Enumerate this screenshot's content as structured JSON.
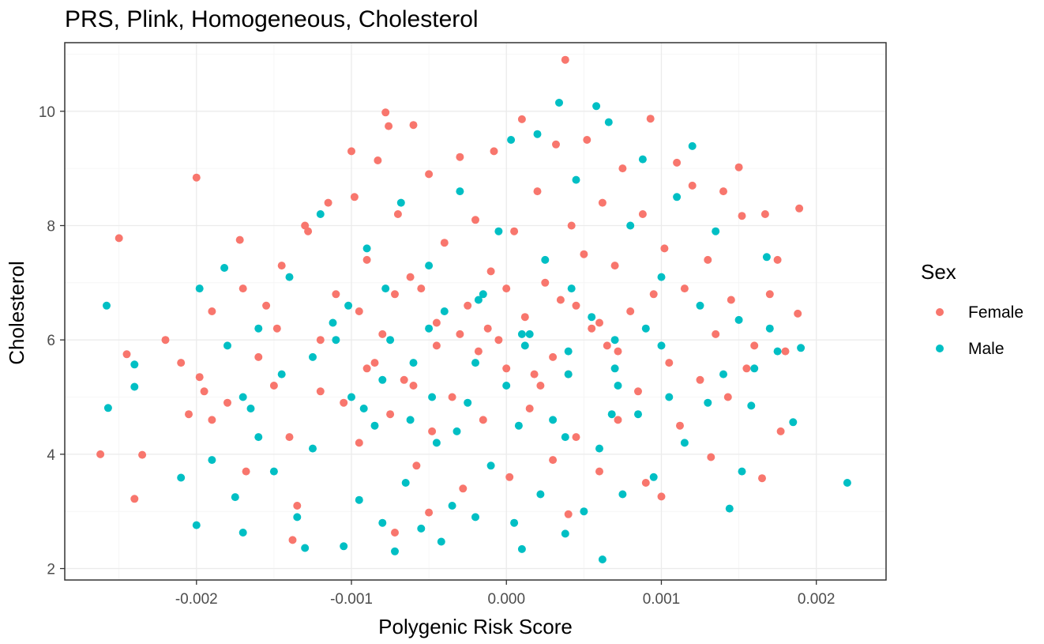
{
  "chart_data": {
    "type": "scatter",
    "title": "PRS, Plink, Homogeneous, Cholesterol",
    "xlabel": "Polygenic Risk Score",
    "ylabel": "Cholesterol",
    "xlim": [
      -0.00285,
      0.00245
    ],
    "ylim": [
      1.8,
      11.2
    ],
    "x_ticks": [
      -0.002,
      -0.001,
      0.0,
      0.001,
      0.002
    ],
    "x_tick_labels": [
      "-0.002",
      "-0.001",
      "0.000",
      "0.001",
      "0.002"
    ],
    "y_ticks": [
      2,
      4,
      6,
      8,
      10
    ],
    "y_tick_labels": [
      "2",
      "4",
      "6",
      "8",
      "10"
    ],
    "grid": true,
    "legend": {
      "title": "Sex",
      "placement": "right",
      "entries": [
        "Female",
        "Male"
      ]
    },
    "series": [
      {
        "name": "Female",
        "color": "#F8766D",
        "points": [
          [
            -0.00262,
            4.0
          ],
          [
            -0.0025,
            7.78
          ],
          [
            -0.00245,
            5.75
          ],
          [
            -0.0024,
            3.22
          ],
          [
            -0.00235,
            3.99
          ],
          [
            -0.0022,
            6.0
          ],
          [
            -0.0021,
            5.6
          ],
          [
            -0.002,
            8.84
          ],
          [
            -0.00198,
            5.35
          ],
          [
            -0.0019,
            6.5
          ],
          [
            -0.00172,
            7.75
          ],
          [
            -0.0017,
            6.9
          ],
          [
            -0.00168,
            3.7
          ],
          [
            -0.00155,
            6.6
          ],
          [
            -0.00148,
            6.2
          ],
          [
            -0.00145,
            7.3
          ],
          [
            -0.0014,
            4.3
          ],
          [
            -0.00135,
            3.1
          ],
          [
            -0.0013,
            8.0
          ],
          [
            -0.00128,
            7.9
          ],
          [
            -0.0012,
            5.1
          ],
          [
            -0.00115,
            8.4
          ],
          [
            -0.0011,
            6.8
          ],
          [
            -0.00105,
            4.9
          ],
          [
            -0.001,
            9.3
          ],
          [
            -0.00098,
            8.5
          ],
          [
            -0.00095,
            4.2
          ],
          [
            -0.0009,
            7.4
          ],
          [
            -0.00085,
            5.6
          ],
          [
            -0.00083,
            9.14
          ],
          [
            -0.0008,
            6.1
          ],
          [
            -0.00078,
            9.98
          ],
          [
            -0.00076,
            9.74
          ],
          [
            -0.00075,
            4.7
          ],
          [
            -0.0007,
            8.2
          ],
          [
            -0.00066,
            5.3
          ],
          [
            -0.00062,
            7.1
          ],
          [
            -0.0006,
            9.76
          ],
          [
            -0.00058,
            3.8
          ],
          [
            -0.00055,
            6.9
          ],
          [
            -0.0005,
            8.9
          ],
          [
            -0.00048,
            4.4
          ],
          [
            -0.00045,
            6.3
          ],
          [
            -0.0004,
            7.7
          ],
          [
            -0.00035,
            5.0
          ],
          [
            -0.0003,
            9.2
          ],
          [
            -0.00028,
            3.4
          ],
          [
            -0.00025,
            6.6
          ],
          [
            -0.0002,
            8.1
          ],
          [
            -0.00018,
            5.8
          ],
          [
            -0.00015,
            4.6
          ],
          [
            -0.0001,
            7.2
          ],
          [
            -8e-05,
            9.3
          ],
          [
            -5e-05,
            6.0
          ],
          [
            0.0,
            5.5
          ],
          [
            2e-05,
            3.6
          ],
          [
            5e-05,
            7.9
          ],
          [
            0.0001,
            9.86
          ],
          [
            0.00012,
            6.4
          ],
          [
            0.00015,
            4.8
          ],
          [
            0.0002,
            8.6
          ],
          [
            0.00022,
            5.2
          ],
          [
            0.00025,
            7.0
          ],
          [
            0.0003,
            3.9
          ],
          [
            0.00032,
            9.42
          ],
          [
            0.00035,
            6.7
          ],
          [
            0.00038,
            10.9
          ],
          [
            0.0004,
            5.4
          ],
          [
            0.00042,
            8.0
          ],
          [
            0.00045,
            4.3
          ],
          [
            0.0005,
            7.5
          ],
          [
            0.00052,
            9.5
          ],
          [
            0.00055,
            6.2
          ],
          [
            0.0006,
            3.7
          ],
          [
            0.00062,
            8.4
          ],
          [
            0.00065,
            5.9
          ],
          [
            0.0007,
            7.3
          ],
          [
            0.00072,
            4.6
          ],
          [
            0.00075,
            9.0
          ],
          [
            0.0008,
            6.5
          ],
          [
            0.00085,
            5.1
          ],
          [
            0.00088,
            8.2
          ],
          [
            0.0009,
            3.5
          ],
          [
            0.00093,
            9.87
          ],
          [
            0.00095,
            6.8
          ],
          [
            0.001,
            3.26
          ],
          [
            0.00102,
            7.6
          ],
          [
            0.00105,
            5.6
          ],
          [
            0.0011,
            9.1
          ],
          [
            0.00112,
            4.5
          ],
          [
            0.00115,
            6.9
          ],
          [
            0.0012,
            8.7
          ],
          [
            0.00125,
            5.3
          ],
          [
            0.0013,
            7.4
          ],
          [
            0.00132,
            3.95
          ],
          [
            0.00135,
            6.1
          ],
          [
            0.0014,
            8.6
          ],
          [
            0.00143,
            5.0
          ],
          [
            0.00145,
            6.7
          ],
          [
            0.0015,
            9.02
          ],
          [
            0.00152,
            8.17
          ],
          [
            0.00155,
            5.5
          ],
          [
            0.0016,
            5.9
          ],
          [
            0.00165,
            3.58
          ],
          [
            0.00167,
            8.2
          ],
          [
            0.0017,
            6.8
          ],
          [
            0.00175,
            7.4
          ],
          [
            0.00177,
            4.4
          ],
          [
            0.0018,
            5.8
          ],
          [
            0.00188,
            6.46
          ],
          [
            0.00189,
            8.3
          ],
          [
            -0.00095,
            6.5
          ],
          [
            -0.0006,
            5.2
          ],
          [
            -0.0003,
            6.1
          ],
          [
            0.0,
            6.9
          ],
          [
            0.0003,
            5.7
          ],
          [
            0.0006,
            6.3
          ],
          [
            -0.0012,
            6.0
          ],
          [
            -0.0009,
            5.5
          ],
          [
            -0.00072,
            6.8
          ],
          [
            -0.00045,
            5.9
          ],
          [
            -0.00012,
            6.2
          ],
          [
            0.00018,
            5.4
          ],
          [
            0.00045,
            6.6
          ],
          [
            0.00072,
            5.8
          ],
          [
            -0.0005,
            2.98
          ],
          [
            -0.00072,
            2.63
          ],
          [
            -0.00138,
            2.5
          ],
          [
            0.0004,
            2.95
          ],
          [
            -0.0015,
            5.2
          ],
          [
            -0.0018,
            4.9
          ],
          [
            -0.0016,
            5.7
          ],
          [
            -0.0019,
            4.6
          ],
          [
            -0.00205,
            4.7
          ],
          [
            -0.00195,
            5.1
          ]
        ]
      },
      {
        "name": "Male",
        "color": "#00BFC4",
        "points": [
          [
            -0.00258,
            6.6
          ],
          [
            -0.00257,
            4.81
          ],
          [
            -0.0024,
            5.57
          ],
          [
            -0.0024,
            5.18
          ],
          [
            -0.0021,
            3.59
          ],
          [
            -0.002,
            2.76
          ],
          [
            -0.00198,
            6.9
          ],
          [
            -0.0019,
            3.9
          ],
          [
            -0.00182,
            7.26
          ],
          [
            -0.00175,
            3.25
          ],
          [
            -0.0017,
            2.63
          ],
          [
            -0.00165,
            4.8
          ],
          [
            -0.0016,
            6.2
          ],
          [
            -0.0015,
            3.7
          ],
          [
            -0.00145,
            5.4
          ],
          [
            -0.0014,
            7.1
          ],
          [
            -0.00135,
            2.9
          ],
          [
            -0.0013,
            2.36
          ],
          [
            -0.00125,
            4.1
          ],
          [
            -0.0012,
            8.2
          ],
          [
            -0.00112,
            6.3
          ],
          [
            -0.00105,
            2.39
          ],
          [
            -0.001,
            5.0
          ],
          [
            -0.00095,
            3.2
          ],
          [
            -0.0009,
            7.6
          ],
          [
            -0.00085,
            4.5
          ],
          [
            -0.0008,
            2.8
          ],
          [
            -0.00075,
            6.0
          ],
          [
            -0.00072,
            2.3
          ],
          [
            -0.00068,
            8.4
          ],
          [
            -0.00065,
            3.5
          ],
          [
            -0.0006,
            5.6
          ],
          [
            -0.00055,
            2.7
          ],
          [
            -0.0005,
            7.3
          ],
          [
            -0.00045,
            4.2
          ],
          [
            -0.00042,
            2.47
          ],
          [
            -0.0004,
            6.5
          ],
          [
            -0.00035,
            3.1
          ],
          [
            -0.0003,
            8.6
          ],
          [
            -0.00025,
            4.9
          ],
          [
            -0.0002,
            2.9
          ],
          [
            -0.00015,
            6.8
          ],
          [
            -0.0001,
            3.8
          ],
          [
            -5e-05,
            7.9
          ],
          [
            0.0,
            5.2
          ],
          [
            3e-05,
            9.5
          ],
          [
            5e-05,
            2.8
          ],
          [
            0.0001,
            2.34
          ],
          [
            0.00015,
            6.1
          ],
          [
            0.0002,
            9.6
          ],
          [
            0.00022,
            3.3
          ],
          [
            0.00025,
            7.4
          ],
          [
            0.0003,
            4.6
          ],
          [
            0.00034,
            10.15
          ],
          [
            0.00038,
            2.61
          ],
          [
            0.0004,
            5.8
          ],
          [
            0.00045,
            8.8
          ],
          [
            0.0005,
            3.0
          ],
          [
            0.00055,
            6.4
          ],
          [
            0.00058,
            10.09
          ],
          [
            0.0006,
            4.1
          ],
          [
            0.00062,
            2.16
          ],
          [
            0.00066,
            9.81
          ],
          [
            0.0007,
            5.5
          ],
          [
            0.00075,
            3.3
          ],
          [
            0.0008,
            8.0
          ],
          [
            0.00085,
            4.7
          ],
          [
            0.00088,
            9.16
          ],
          [
            0.0009,
            6.2
          ],
          [
            0.00095,
            3.6
          ],
          [
            0.001,
            7.1
          ],
          [
            0.00105,
            5.0
          ],
          [
            0.0011,
            8.5
          ],
          [
            0.00115,
            4.2
          ],
          [
            0.0012,
            9.39
          ],
          [
            0.00125,
            6.6
          ],
          [
            0.0013,
            4.9
          ],
          [
            0.00135,
            7.9
          ],
          [
            0.0014,
            5.4
          ],
          [
            0.00144,
            3.05
          ],
          [
            0.0015,
            6.35
          ],
          [
            0.00152,
            3.7
          ],
          [
            0.00158,
            4.85
          ],
          [
            0.0016,
            5.5
          ],
          [
            0.00168,
            7.45
          ],
          [
            0.0017,
            6.2
          ],
          [
            0.00175,
            5.8
          ],
          [
            0.00185,
            4.56
          ],
          [
            0.0019,
            5.86
          ],
          [
            0.0022,
            3.5
          ],
          [
            -0.0011,
            6.0
          ],
          [
            -0.0008,
            5.3
          ],
          [
            -0.0005,
            6.2
          ],
          [
            -0.0002,
            5.6
          ],
          [
            0.0001,
            6.1
          ],
          [
            0.0004,
            5.4
          ],
          [
            0.0007,
            6.0
          ],
          [
            -0.00092,
            4.8
          ],
          [
            -0.00062,
            4.6
          ],
          [
            -0.00032,
            4.4
          ],
          [
            8e-05,
            4.5
          ],
          [
            0.00038,
            4.3
          ],
          [
            0.00068,
            4.7
          ],
          [
            -0.00125,
            5.7
          ],
          [
            -0.00102,
            6.6
          ],
          [
            -0.00078,
            6.9
          ],
          [
            -0.00048,
            5.0
          ],
          [
            -0.00018,
            6.7
          ],
          [
            0.00012,
            5.9
          ],
          [
            0.00042,
            6.9
          ],
          [
            0.00072,
            5.2
          ],
          [
            0.001,
            5.9
          ],
          [
            -0.0018,
            5.9
          ],
          [
            -0.0016,
            4.3
          ],
          [
            -0.0017,
            5.0
          ]
        ]
      }
    ]
  }
}
